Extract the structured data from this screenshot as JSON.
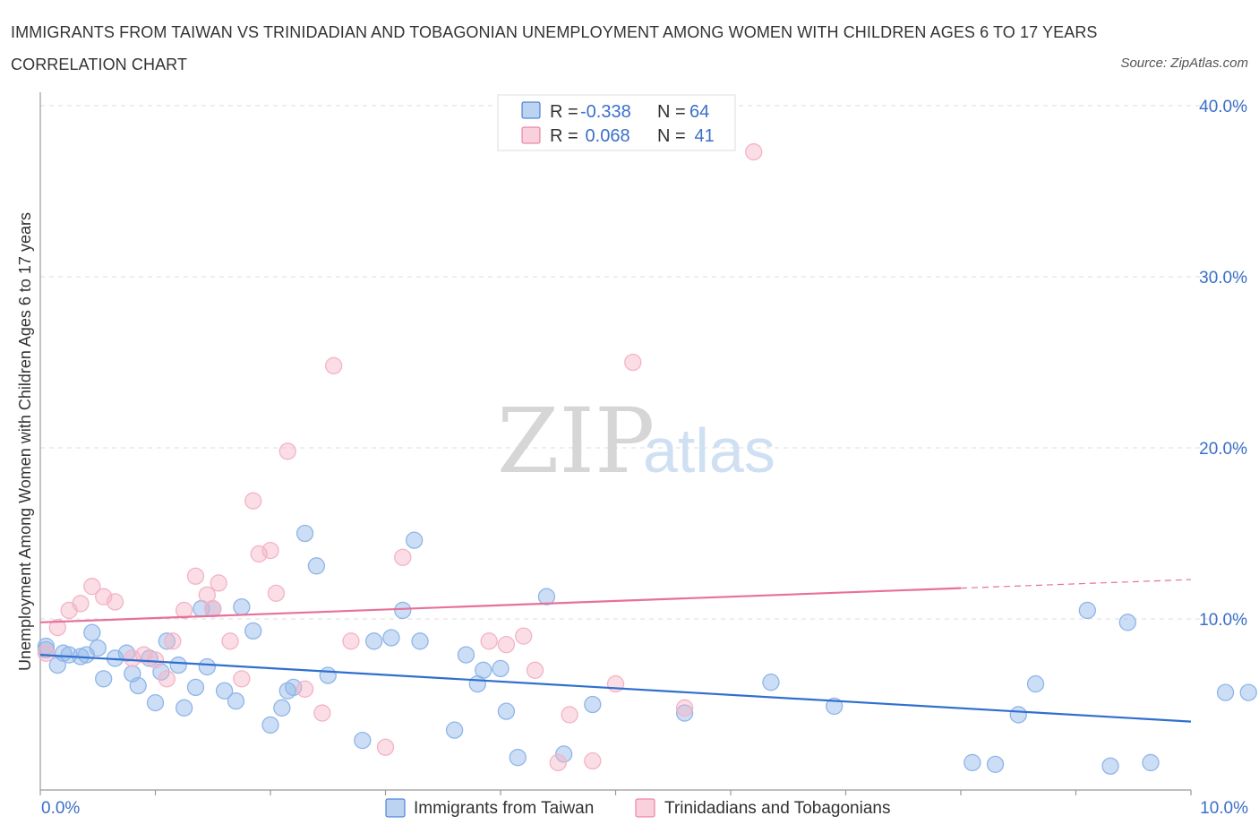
{
  "title": "IMMIGRANTS FROM TAIWAN VS TRINIDADIAN AND TOBAGONIAN UNEMPLOYMENT AMONG WOMEN WITH CHILDREN AGES 6 TO 17 YEARS CORRELATION CHART",
  "source": "Source: ZipAtlas.com",
  "watermark": {
    "zip": "ZIP",
    "atlas": "atlas"
  },
  "legend": {
    "rows": [
      {
        "r_label": "R =",
        "r_value": "-0.338",
        "n_label": "N =",
        "n_value": "64"
      },
      {
        "r_label": "R =",
        "r_value": " 0.068",
        "n_label": "N =",
        "n_value": " 41"
      }
    ]
  },
  "chart_data": {
    "type": "scatter",
    "title": "IMMIGRANTS FROM TAIWAN VS TRINIDADIAN AND TOBAGONIAN UNEMPLOYMENT AMONG WOMEN WITH CHILDREN AGES 6 TO 17 YEARS CORRELATION CHART",
    "xlabel": "",
    "ylabel": "Unemployment Among Women with Children Ages 6 to 17 years",
    "xlim": [
      0,
      10
    ],
    "ylim": [
      0,
      40
    ],
    "x_tick_labels": [
      "0.0%",
      "10.0%"
    ],
    "y_ticks": [
      10,
      20,
      30,
      40
    ],
    "y_tick_labels": [
      "10.0%",
      "20.0%",
      "30.0%",
      "40.0%"
    ],
    "grid": true,
    "legend_position": "top-center",
    "series": [
      {
        "name": "Immigrants from Taiwan",
        "color": "#8fb5e8",
        "line_color": "#2f6fcf",
        "trend": {
          "x": [
            0,
            10
          ],
          "y": [
            7.9,
            4.0
          ]
        },
        "points": [
          [
            0.05,
            8.2
          ],
          [
            0.15,
            7.3
          ],
          [
            0.2,
            8.0
          ],
          [
            0.25,
            7.9
          ],
          [
            0.35,
            7.8
          ],
          [
            0.4,
            7.9
          ],
          [
            0.45,
            9.2
          ],
          [
            0.5,
            8.3
          ],
          [
            0.55,
            6.5
          ],
          [
            0.65,
            7.7
          ],
          [
            0.75,
            8.0
          ],
          [
            0.8,
            6.8
          ],
          [
            0.85,
            6.1
          ],
          [
            0.95,
            7.7
          ],
          [
            1.0,
            5.1
          ],
          [
            1.05,
            6.9
          ],
          [
            1.1,
            8.7
          ],
          [
            1.2,
            7.3
          ],
          [
            1.25,
            4.8
          ],
          [
            1.35,
            6.0
          ],
          [
            1.4,
            10.6
          ],
          [
            1.45,
            7.2
          ],
          [
            1.5,
            10.6
          ],
          [
            1.6,
            5.8
          ],
          [
            1.7,
            5.2
          ],
          [
            1.75,
            10.7
          ],
          [
            1.85,
            9.3
          ],
          [
            2.0,
            3.8
          ],
          [
            2.1,
            4.8
          ],
          [
            2.15,
            5.8
          ],
          [
            2.2,
            6.0
          ],
          [
            2.3,
            15.0
          ],
          [
            2.4,
            13.1
          ],
          [
            2.5,
            6.7
          ],
          [
            2.8,
            2.9
          ],
          [
            2.9,
            8.7
          ],
          [
            3.05,
            8.9
          ],
          [
            3.15,
            10.5
          ],
          [
            3.25,
            14.6
          ],
          [
            3.3,
            8.7
          ],
          [
            3.6,
            3.5
          ],
          [
            3.7,
            7.9
          ],
          [
            3.8,
            6.2
          ],
          [
            3.85,
            7.0
          ],
          [
            4.0,
            7.1
          ],
          [
            4.05,
            4.6
          ],
          [
            4.15,
            1.9
          ],
          [
            4.4,
            11.3
          ],
          [
            4.55,
            2.1
          ],
          [
            4.8,
            5.0
          ],
          [
            5.6,
            4.5
          ],
          [
            6.35,
            6.3
          ],
          [
            6.9,
            4.9
          ],
          [
            8.1,
            1.6
          ],
          [
            8.3,
            1.5
          ],
          [
            8.5,
            4.4
          ],
          [
            8.65,
            6.2
          ],
          [
            9.1,
            10.5
          ],
          [
            9.3,
            1.4
          ],
          [
            9.45,
            9.8
          ],
          [
            9.65,
            1.6
          ],
          [
            10.3,
            5.7
          ],
          [
            10.5,
            5.7
          ],
          [
            0.05,
            8.4
          ]
        ]
      },
      {
        "name": "Trinidadians and Tobagonians",
        "color": "#f4b3c6",
        "line_color": "#e8709a",
        "trend": {
          "x": [
            0,
            8.0
          ],
          "y": [
            9.8,
            11.8
          ]
        },
        "trend_extension": {
          "x": [
            8.0,
            10.0
          ],
          "y": [
            11.8,
            12.3
          ]
        },
        "points": [
          [
            0.05,
            8.0
          ],
          [
            0.15,
            9.5
          ],
          [
            0.25,
            10.5
          ],
          [
            0.35,
            10.9
          ],
          [
            0.45,
            11.9
          ],
          [
            0.55,
            11.3
          ],
          [
            0.65,
            11.0
          ],
          [
            0.8,
            7.7
          ],
          [
            0.9,
            7.9
          ],
          [
            1.0,
            7.6
          ],
          [
            1.1,
            6.5
          ],
          [
            1.15,
            8.7
          ],
          [
            1.25,
            10.5
          ],
          [
            1.35,
            12.5
          ],
          [
            1.45,
            11.4
          ],
          [
            1.5,
            10.6
          ],
          [
            1.55,
            12.1
          ],
          [
            1.65,
            8.7
          ],
          [
            1.75,
            6.5
          ],
          [
            1.85,
            16.9
          ],
          [
            1.9,
            13.8
          ],
          [
            2.0,
            14.0
          ],
          [
            2.05,
            11.5
          ],
          [
            2.15,
            19.8
          ],
          [
            2.3,
            5.9
          ],
          [
            2.45,
            4.5
          ],
          [
            2.55,
            24.8
          ],
          [
            2.7,
            8.7
          ],
          [
            3.0,
            2.5
          ],
          [
            3.15,
            13.6
          ],
          [
            3.9,
            8.7
          ],
          [
            4.05,
            8.5
          ],
          [
            4.2,
            9.0
          ],
          [
            4.3,
            7.0
          ],
          [
            4.5,
            1.6
          ],
          [
            4.6,
            4.4
          ],
          [
            4.8,
            1.7
          ],
          [
            5.0,
            6.2
          ],
          [
            5.15,
            25.0
          ],
          [
            5.6,
            4.8
          ],
          [
            6.2,
            37.3
          ]
        ]
      }
    ]
  }
}
